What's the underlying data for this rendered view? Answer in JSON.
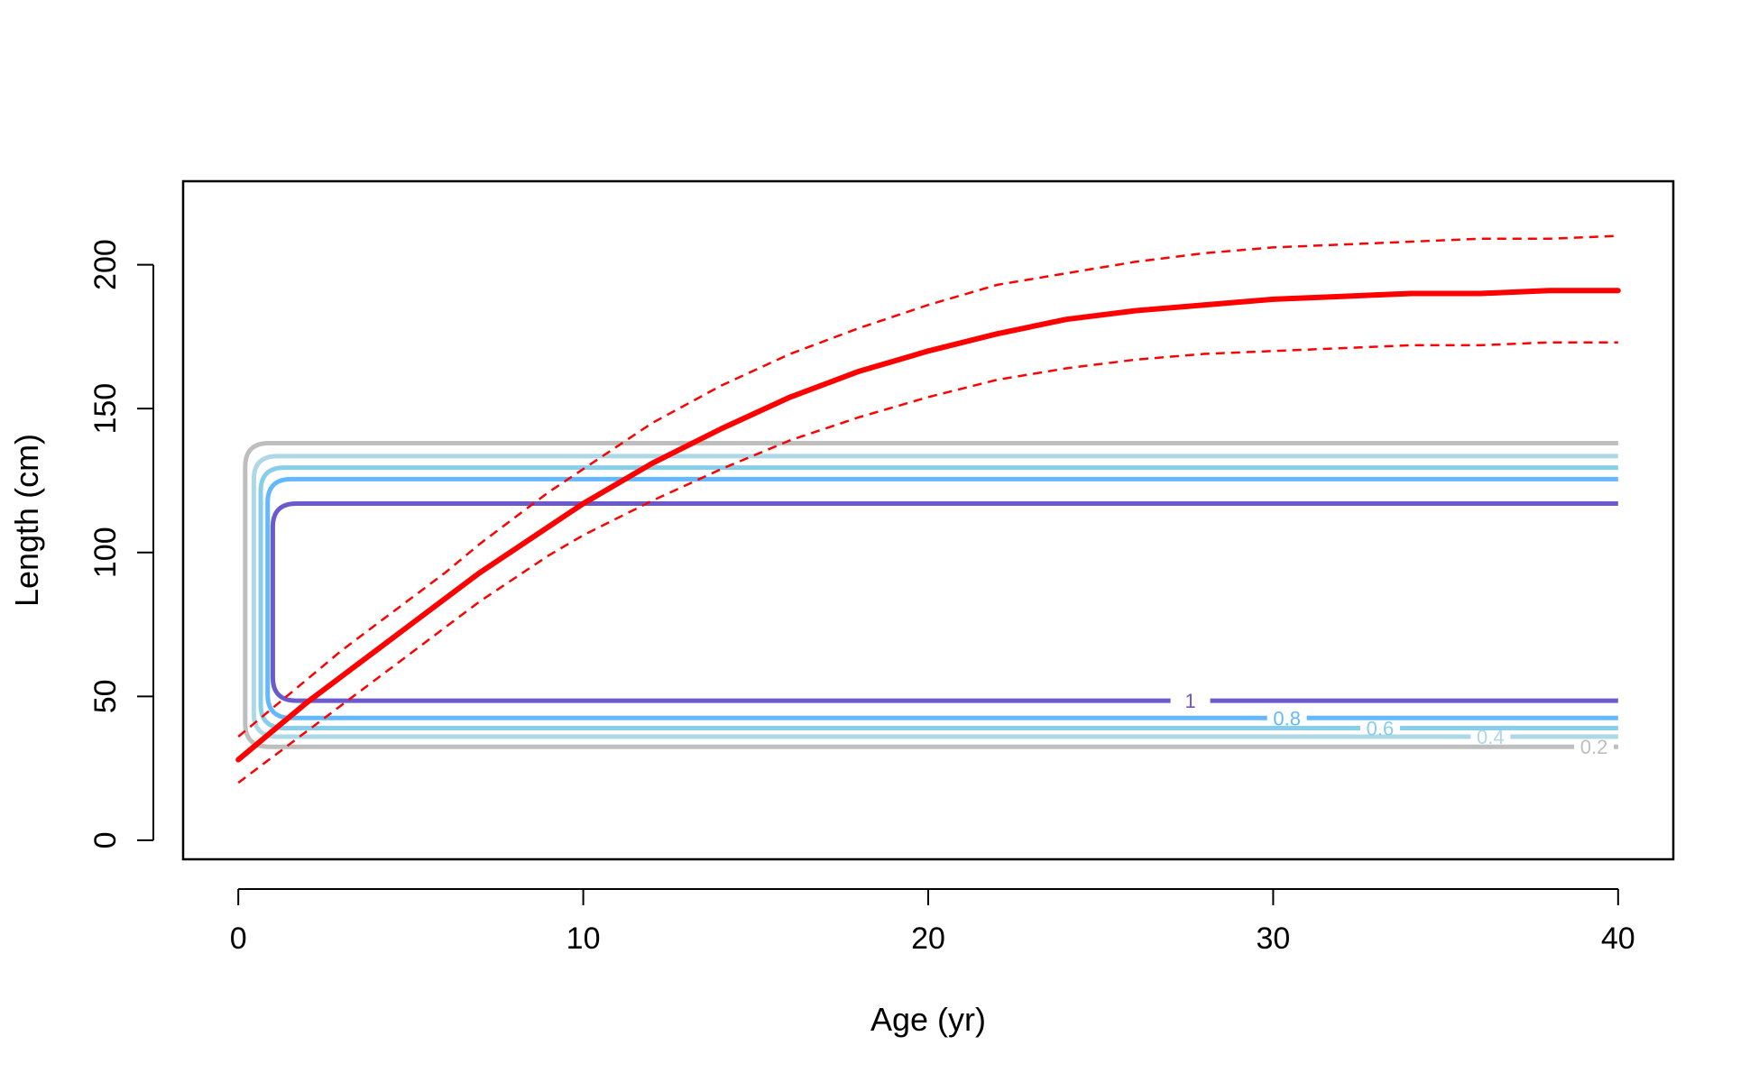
{
  "chart_data": {
    "type": "line",
    "xlabel": "Age (yr)",
    "ylabel": "Length (cm)",
    "xlim": [
      -1.6,
      41.6
    ],
    "ylim": [
      -6.6,
      229
    ],
    "x_ticks": [
      0,
      10,
      20,
      30,
      40
    ],
    "y_ticks": [
      0,
      50,
      100,
      150,
      200
    ],
    "grid": false,
    "legend": "none",
    "series": [
      {
        "role": "mean",
        "color": "#ff0000",
        "style": "solid",
        "x": [
          0,
          1,
          2,
          3,
          4,
          5,
          6,
          7,
          8,
          9,
          10,
          12,
          14,
          16,
          18,
          20,
          22,
          24,
          26,
          28,
          30,
          32,
          34,
          36,
          38,
          40
        ],
        "y": [
          28,
          38,
          48,
          57,
          66,
          75,
          84,
          93,
          101,
          109,
          117,
          131,
          143,
          154,
          163,
          170,
          176,
          181,
          184,
          186,
          188,
          189,
          190,
          190,
          191,
          191
        ]
      },
      {
        "role": "upper",
        "color": "#ff0000",
        "style": "dashed",
        "x": [
          0,
          1,
          2,
          3,
          4,
          5,
          6,
          7,
          8,
          9,
          10,
          12,
          14,
          16,
          18,
          20,
          22,
          24,
          26,
          28,
          30,
          32,
          34,
          36,
          38,
          40
        ],
        "y": [
          36,
          46,
          56,
          66,
          75,
          84,
          93,
          103,
          112,
          121,
          129,
          145,
          158,
          169,
          178,
          186,
          193,
          197,
          201,
          204,
          206,
          207,
          208,
          209,
          209,
          210
        ]
      },
      {
        "role": "lower",
        "color": "#ff0000",
        "style": "dashed",
        "x": [
          0,
          1,
          2,
          3,
          4,
          5,
          6,
          7,
          8,
          9,
          10,
          12,
          14,
          16,
          18,
          20,
          22,
          24,
          26,
          28,
          30,
          32,
          34,
          36,
          38,
          40
        ],
        "y": [
          20,
          29,
          38,
          47,
          56,
          65,
          74,
          83,
          91,
          99,
          106,
          118,
          129,
          139,
          147,
          154,
          160,
          164,
          167,
          169,
          170,
          171,
          172,
          172,
          173,
          173
        ]
      }
    ],
    "contours": [
      {
        "level": 0.2,
        "label": "0.2",
        "color": "#bebebe",
        "x_left": 0.2,
        "x_right": 40,
        "y_bottom": 32.5,
        "y_top": 138,
        "label_x": 39.3
      },
      {
        "level": 0.4,
        "label": "0.4",
        "color": "#add8e6",
        "x_left": 0.45,
        "x_right": 40,
        "y_bottom": 36,
        "y_top": 133.5,
        "label_x": 36.3
      },
      {
        "level": 0.6,
        "label": "0.6",
        "color": "#87ceeb",
        "x_left": 0.65,
        "x_right": 40,
        "y_bottom": 39,
        "y_top": 129.5,
        "label_x": 33.1
      },
      {
        "level": 0.8,
        "label": "0.8",
        "color": "#63b8ff",
        "x_left": 0.85,
        "x_right": 40,
        "y_bottom": 42.5,
        "y_top": 125.5,
        "label_x": 30.4
      },
      {
        "level": 1,
        "label": "1",
        "color": "#6a5acd",
        "x_left": 1.0,
        "x_right": 40,
        "y_bottom": 48.5,
        "y_top": 117,
        "label_x": 27.6
      }
    ]
  }
}
